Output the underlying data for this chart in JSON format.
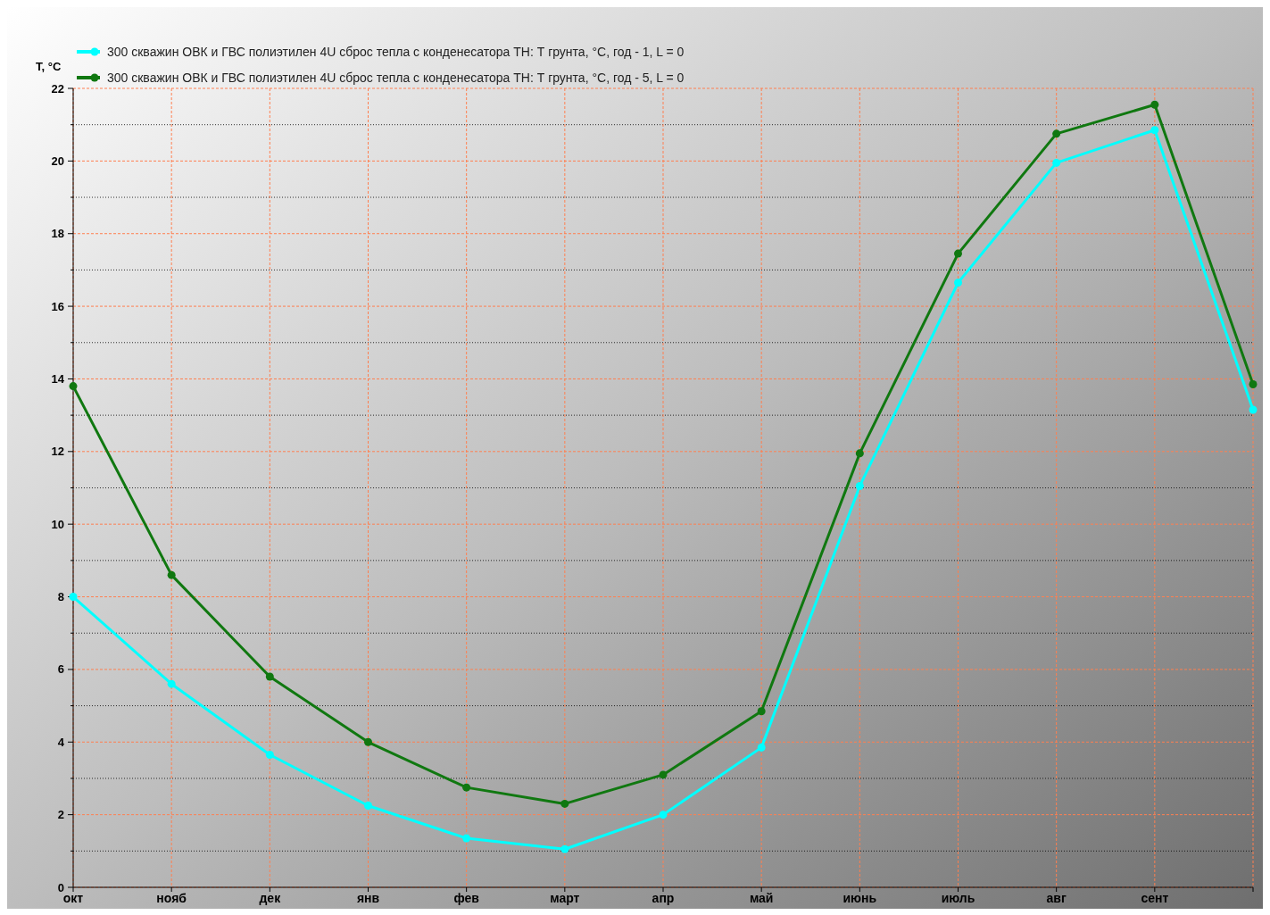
{
  "chart_data": {
    "type": "line",
    "ylabel": "T, °C",
    "categories": [
      "окт",
      "нояб",
      "дек",
      "янв",
      "фев",
      "март",
      "апр",
      "май",
      "июнь",
      "июль",
      "авг",
      "сент",
      null
    ],
    "series": [
      {
        "name": "300 скважин ОВК и ГВС полиэтилен 4U сброс тепла с конденесатора ТН: Т грунта, °C, год -  1, L = 0",
        "color": "#00ffff",
        "values": [
          8.0,
          5.6,
          3.65,
          2.25,
          1.35,
          1.05,
          2.0,
          3.85,
          11.05,
          16.65,
          19.95,
          20.85,
          13.15
        ]
      },
      {
        "name": "300 скважин ОВК и ГВС полиэтилен 4U сброс тепла с конденесатора ТН: Т грунта, °C, год -  5, L = 0",
        "color": "#107810",
        "values": [
          13.8,
          8.6,
          5.8,
          4.0,
          2.75,
          2.3,
          3.1,
          4.85,
          11.95,
          17.45,
          20.75,
          21.55,
          13.85
        ]
      }
    ],
    "ylim": [
      0,
      22
    ],
    "yticks": [
      0,
      {
        "value": 1,
        "label": null
      },
      2,
      {
        "value": 3,
        "label": null
      },
      4,
      {
        "value": 5,
        "label": null
      },
      6,
      {
        "value": 7,
        "label": null
      },
      8,
      {
        "value": 9,
        "label": null
      },
      10,
      {
        "value": 11,
        "label": null
      },
      12,
      {
        "value": 13,
        "label": null
      },
      14,
      {
        "value": 15,
        "label": null
      },
      16,
      {
        "value": 17,
        "label": null
      },
      18,
      {
        "value": 19,
        "label": null
      },
      20,
      {
        "value": 21,
        "label": null
      },
      22
    ],
    "grid": true,
    "legend": "top left",
    "marker": "circle",
    "line_style": "solid"
  }
}
